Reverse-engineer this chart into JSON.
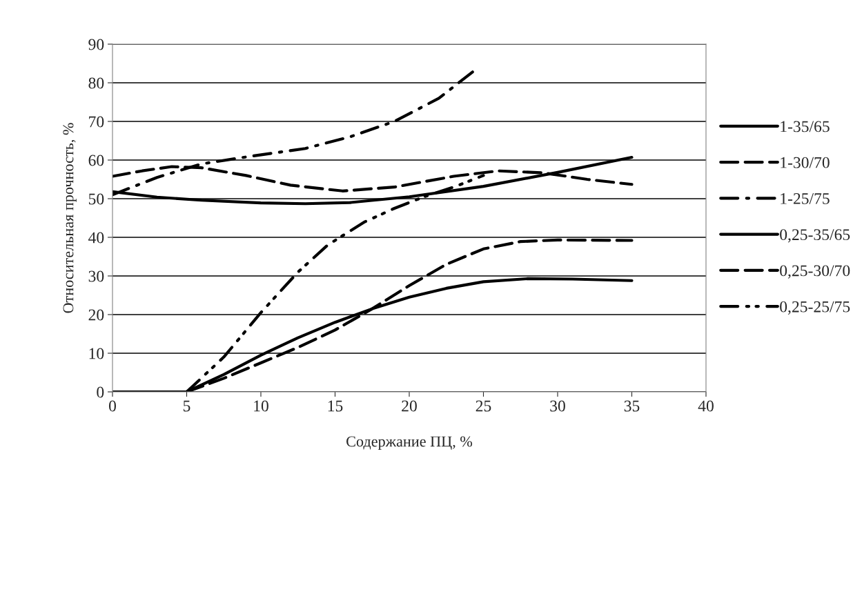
{
  "chart_data": {
    "type": "line",
    "xlabel": "Содержание ПЦ, %",
    "ylabel": "Относительная прочность, %",
    "xlim": [
      0,
      40
    ],
    "xticks": [
      0,
      5,
      10,
      15,
      20,
      25,
      30,
      35,
      40
    ],
    "ylim": [
      0,
      90
    ],
    "yticks": [
      0,
      10,
      20,
      30,
      40,
      50,
      60,
      70,
      80,
      90
    ],
    "grid": "y",
    "legend": "right",
    "marker": "none",
    "series": [
      {
        "name": "1-35/65",
        "color": "#000000",
        "line_style": "solid",
        "x": [
          0,
          3,
          6,
          10,
          13,
          16,
          20,
          25,
          30,
          35
        ],
        "values": [
          51.8,
          50.4,
          49.6,
          48.9,
          48.7,
          49.0,
          50.5,
          53.2,
          56.8,
          60.7
        ]
      },
      {
        "name": "1-30/70",
        "color": "#000000",
        "line_style": "dashed",
        "x": [
          0,
          2,
          4,
          6,
          9,
          12,
          15.5,
          19,
          23,
          26,
          29,
          32,
          35
        ],
        "values": [
          55.8,
          57.2,
          58.3,
          58.0,
          56.0,
          53.5,
          52.0,
          53.0,
          55.8,
          57.2,
          56.7,
          55.0,
          53.7
        ]
      },
      {
        "name": "1-25/75",
        "color": "#000000",
        "line_style": "dashdot",
        "x": [
          0,
          3,
          6,
          9,
          13,
          16,
          19,
          22,
          24.5
        ],
        "values": [
          51.0,
          55.5,
          59.0,
          60.8,
          63.0,
          66.0,
          70.0,
          76.0,
          83.5
        ]
      },
      {
        "name": "0,25-35/65",
        "color": "#000000",
        "line_style": "solid",
        "x": [
          0,
          1.5,
          5,
          7.5,
          10,
          12.5,
          15,
          17.5,
          20,
          22.5,
          25,
          28,
          31,
          35
        ],
        "values": [
          0,
          0,
          0,
          4.5,
          9.5,
          14.0,
          18.0,
          21.5,
          24.5,
          26.8,
          28.5,
          29.3,
          29.2,
          28.8
        ]
      },
      {
        "name": "0,25-30/70",
        "color": "#000000",
        "line_style": "dashed",
        "x": [
          5,
          7.5,
          10,
          12.5,
          15,
          17.5,
          20,
          22.5,
          25,
          27.5,
          30,
          35
        ],
        "values": [
          0,
          3.5,
          7.5,
          11.5,
          16.0,
          21.5,
          27.5,
          33.0,
          37.0,
          38.9,
          39.3,
          39.2
        ]
      },
      {
        "name": "0,25-25/75",
        "color": "#000000",
        "line_style": "dashdotdot",
        "x": [
          5,
          7.5,
          10,
          12.5,
          14.5,
          17,
          19,
          21,
          23,
          25
        ],
        "values": [
          0,
          9.0,
          20.5,
          31.0,
          38.0,
          44.0,
          47.5,
          50.5,
          53.0,
          56.0
        ]
      }
    ]
  }
}
